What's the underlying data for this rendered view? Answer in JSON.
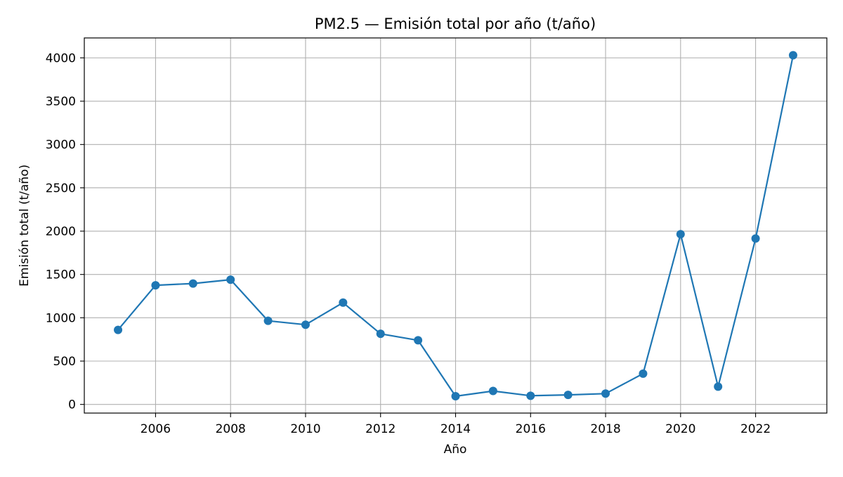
{
  "chart_data": {
    "type": "line",
    "title": "PM2.5 — Emisión total por año (t/año)",
    "xlabel": "Año",
    "ylabel": "Emisión total (t/año)",
    "xlim": [
      2004.1,
      2023.9
    ],
    "ylim": [
      -100,
      4230
    ],
    "xticks": [
      2006,
      2008,
      2010,
      2012,
      2014,
      2016,
      2018,
      2020,
      2022
    ],
    "yticks": [
      0,
      500,
      1000,
      1500,
      2000,
      2500,
      3000,
      3500,
      4000
    ],
    "grid": true,
    "series": [
      {
        "color": "#1f77b4",
        "marker": "circle",
        "x": [
          2005,
          2006,
          2007,
          2008,
          2009,
          2010,
          2011,
          2012,
          2013,
          2014,
          2015,
          2016,
          2017,
          2018,
          2019,
          2020,
          2021,
          2022,
          2023
        ],
        "y": [
          860,
          1375,
          1395,
          1440,
          965,
          920,
          1175,
          815,
          740,
          95,
          155,
          100,
          110,
          125,
          355,
          1965,
          205,
          1915,
          4030
        ]
      }
    ]
  }
}
